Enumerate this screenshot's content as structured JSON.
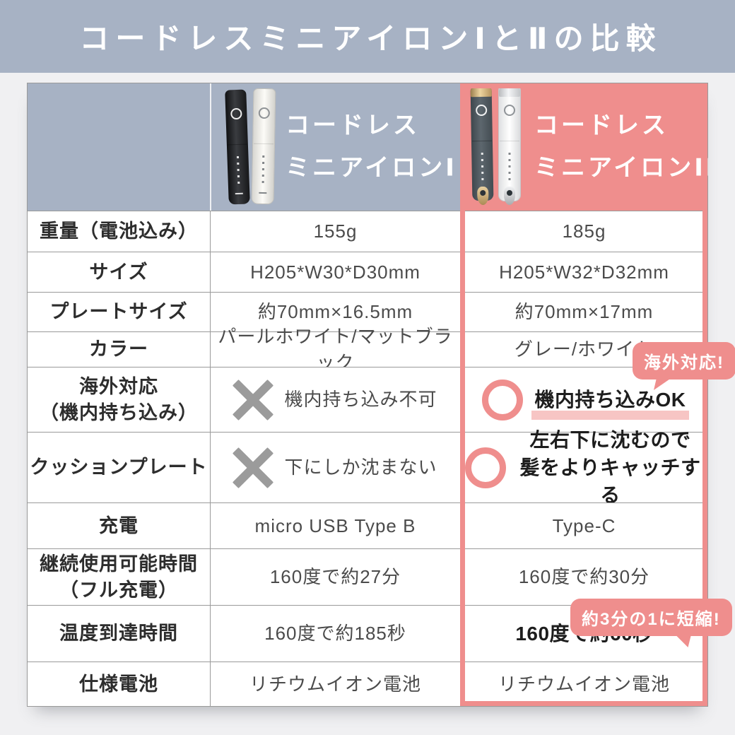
{
  "title": "コードレスミニアイロンⅠとⅡの比較",
  "colors": {
    "header_blue": "#a7b2c4",
    "accent_pink": "#ef8e8d",
    "highlight_pink": "#f7c5c4",
    "grid_line": "#9a9a9a",
    "cross_gray": "#9b9b9b",
    "page_bg": "#f0f0f2"
  },
  "header": {
    "iron1": {
      "line1": "コードレス",
      "line2": "ミニアイロンⅠ"
    },
    "iron2": {
      "line1": "コードレス",
      "line2": "ミニアイロンⅡ"
    }
  },
  "badges": {
    "overseas": "海外対応!",
    "shorten": "約3分の1に短縮!"
  },
  "table": {
    "rows": [
      {
        "label": [
          "重量（電池込み）"
        ],
        "iron1": {
          "text": [
            "155g"
          ]
        },
        "iron2": {
          "text": [
            "185g"
          ]
        }
      },
      {
        "label": [
          "サイズ"
        ],
        "iron1": {
          "text": [
            "H205*W30*D30mm"
          ]
        },
        "iron2": {
          "text": [
            "H205*W32*D32mm"
          ]
        }
      },
      {
        "label": [
          "プレートサイズ"
        ],
        "iron1": {
          "text": [
            "約70mm×16.5mm"
          ]
        },
        "iron2": {
          "text": [
            "約70mm×17mm"
          ]
        }
      },
      {
        "label": [
          "カラー"
        ],
        "iron1": {
          "text": [
            "パールホワイト/マットブラック"
          ]
        },
        "iron2": {
          "text": [
            "グレー/ホワイト"
          ]
        }
      },
      {
        "label": [
          "海外対応",
          "（機内持ち込み）"
        ],
        "iron1": {
          "mark": "cross",
          "text": [
            "機内持ち込み不可"
          ]
        },
        "iron2": {
          "mark": "circle",
          "text": [
            "機内持ち込みOK"
          ],
          "bold": true,
          "underline": true
        }
      },
      {
        "label": [
          "クッションプレート"
        ],
        "iron1": {
          "mark": "cross",
          "text": [
            "下にしか沈まない"
          ]
        },
        "iron2": {
          "mark": "circle",
          "text": [
            "左右下に沈むので",
            "髪をよりキャッチする"
          ],
          "bold": true
        }
      },
      {
        "label": [
          "充電"
        ],
        "iron1": {
          "text": [
            "micro USB Type B"
          ]
        },
        "iron2": {
          "text": [
            "Type-C"
          ]
        }
      },
      {
        "label": [
          "継続使用可能時間",
          "（フル充電）"
        ],
        "iron1": {
          "text": [
            "160度で約27分"
          ]
        },
        "iron2": {
          "text": [
            "160度で約30分"
          ]
        }
      },
      {
        "label": [
          "温度到達時間"
        ],
        "iron1": {
          "text": [
            "160度で約185秒"
          ]
        },
        "iron2": {
          "text": [
            "160度で約60秒"
          ],
          "bold": true
        }
      },
      {
        "label": [
          "仕様電池"
        ],
        "iron1": {
          "text": [
            "リチウムイオン電池"
          ]
        },
        "iron2": {
          "text": [
            "リチウムイオン電池"
          ]
        }
      }
    ]
  }
}
